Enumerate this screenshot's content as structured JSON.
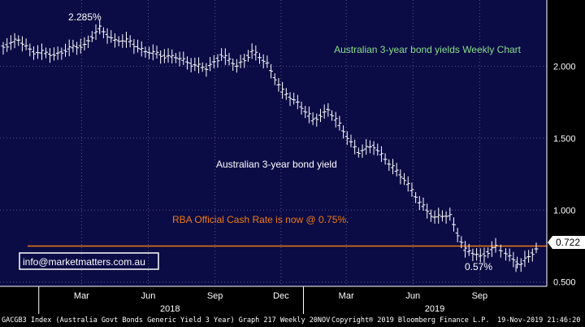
{
  "colors": {
    "background": "#0b0b45",
    "price": "#ffffff",
    "ratio_line": "#f07a10",
    "title_color": "#86e08a",
    "rate_label_color": "#f07a10",
    "badge_bg": "#ffffff",
    "badge_text": "#000000"
  },
  "chart_data": {
    "type": "line",
    "title": "Australian 3-year bond yields Weekly Chart",
    "series": [
      {
        "name": "Australian 3-year bond yield",
        "x": [
          "2017-11-13",
          "2017-12-04",
          "2017-12-25",
          "2018-01-22",
          "2018-02-12",
          "2018-03-05",
          "2018-03-26",
          "2018-04-16",
          "2018-05-07",
          "2018-05-28",
          "2018-06-18",
          "2018-07-09",
          "2018-07-30",
          "2018-08-20",
          "2018-09-10",
          "2018-10-01",
          "2018-10-22",
          "2018-11-12",
          "2018-12-03",
          "2018-12-24",
          "2019-01-14",
          "2019-02-04",
          "2019-02-25",
          "2019-03-18",
          "2019-04-08",
          "2019-04-29",
          "2019-05-20",
          "2019-06-10",
          "2019-07-01",
          "2019-07-22",
          "2019-08-12",
          "2019-09-02",
          "2019-09-23",
          "2019-10-07",
          "2019-10-28",
          "2019-11-18"
        ],
        "y": [
          2.14,
          2.18,
          2.1,
          2.08,
          2.12,
          2.15,
          2.26,
          2.18,
          2.17,
          2.1,
          2.08,
          2.06,
          2.02,
          1.98,
          2.08,
          2.0,
          2.1,
          2.02,
          1.82,
          1.75,
          1.62,
          1.7,
          1.55,
          1.4,
          1.45,
          1.32,
          1.22,
          1.05,
          0.95,
          0.96,
          0.72,
          0.68,
          0.74,
          0.7,
          0.62,
          0.73
        ]
      }
    ],
    "ylim": [
      0.47,
      2.46
    ],
    "ymajor_ticks": [
      0.5,
      1.0,
      1.5,
      2.0
    ],
    "yticks": [
      "0.500",
      "1.000",
      "1.500",
      "2.000"
    ],
    "xticks": [
      "Mar",
      "Jun",
      "Sep",
      "Dec",
      "Mar",
      "Jun",
      "Sep"
    ],
    "year_labels": [
      "2018",
      "2019"
    ],
    "grid": true,
    "last_value": "0.722",
    "rba_rate": 0.75,
    "rba_label": "RBA Official Cash Rate is now @ 0.75%.",
    "series_label": "Australian 3-year bond yield",
    "high_label": "2.285%",
    "low_label": "0.57%",
    "high_value": 2.285,
    "low_value": 0.57,
    "watermark": "info@marketmatters.com.au"
  },
  "footer": {
    "left": "GACGB3 Index (Australia Govt Bonds Generic Yield 3 Year) Graph 217  Weekly 20NOV",
    "center": "Copyright® 2019 Bloomberg Finance L.P.",
    "right": "19-Nov-2019 21:46:20"
  }
}
